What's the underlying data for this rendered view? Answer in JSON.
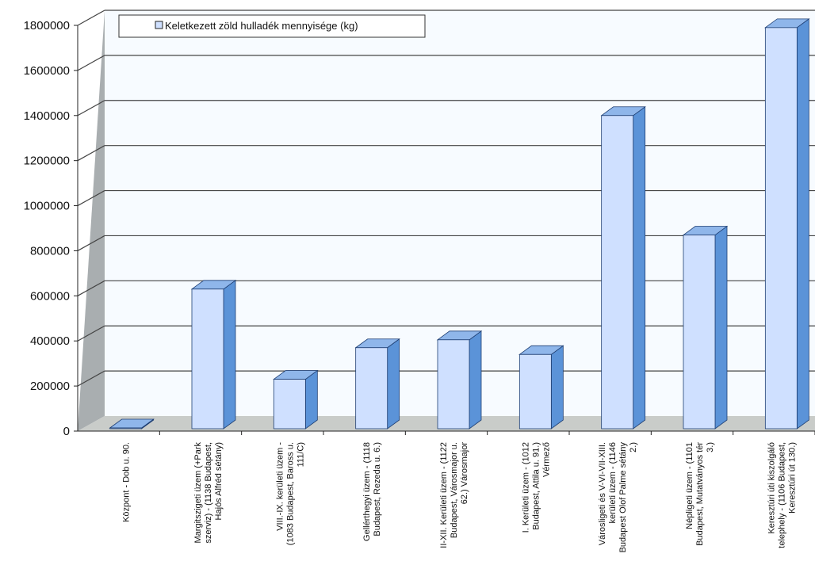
{
  "chart_data": {
    "type": "bar",
    "style": "3d",
    "title": "",
    "xlabel": "",
    "ylabel": "",
    "ylim": [
      0,
      1800000
    ],
    "yticks": [
      "0",
      "200000",
      "400000",
      "600000",
      "800000",
      "1000000",
      "1200000",
      "1400000",
      "1600000",
      "1800000"
    ],
    "grid": true,
    "legend_position": "top-left",
    "colors": {
      "bar_front": "#cfe0ff",
      "bar_side": "#5b93d8",
      "bar_top": "#8fb6ea",
      "floor": "#c9ccc9",
      "back_wall": "#f7fbff",
      "left_wall": "#a9aeb0"
    },
    "categories": [
      [
        "Központ - Dob u. 90."
      ],
      [
        "Margitszigeti üzem (+Park",
        "szerviz) - (1138 Budapest,",
        "Hajós Alfréd sétány)"
      ],
      [
        "VIII.-IX. kerületi üzem -",
        "(1083 Budapest, Baross u.",
        "111/C)"
      ],
      [
        "Gellérthegyi üzem - (1118",
        "Budapest, Rezeda u. 6.)"
      ],
      [
        "II-XII. Kerületi üzem - (1122",
        "Budapest, Városmajor u.",
        "62.) Városmajor"
      ],
      [
        "I. Kerületi üzem - (1012",
        "Budapest, Attila u. 91.)",
        "Vérmező"
      ],
      [
        "Városligeti és V-VI-VII-XIII.",
        "kerületi üzem - (1146",
        "Budapest Olof Palme sétány",
        "2.)"
      ],
      [
        "Népligeti üzem - (1101",
        "Budapest, Mutatványos tér",
        "3.)"
      ],
      [
        "Keresztúri úti kiszolgáló",
        "telephely - (1106 Budapest,",
        "Keresztúri út 130.)"
      ]
    ],
    "series": [
      {
        "name": "Keletkezett zöld hulladék mennyisége (kg)",
        "values": [
          5000,
          630000,
          230000,
          370000,
          405000,
          340000,
          1400000,
          870000,
          1790000
        ]
      }
    ]
  }
}
